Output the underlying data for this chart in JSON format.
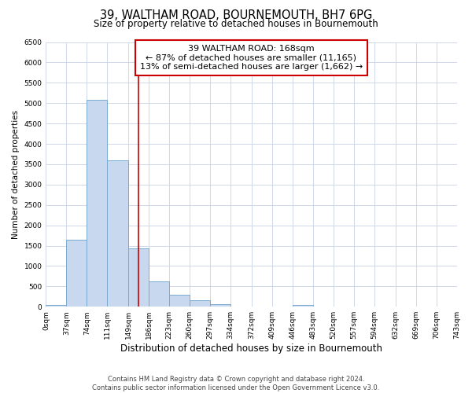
{
  "title": "39, WALTHAM ROAD, BOURNEMOUTH, BH7 6PG",
  "subtitle": "Size of property relative to detached houses in Bournemouth",
  "xlabel": "Distribution of detached houses by size in Bournemouth",
  "ylabel": "Number of detached properties",
  "bin_edges": [
    0,
    37,
    74,
    111,
    149,
    186,
    223,
    260,
    297,
    334,
    372,
    409,
    446,
    483,
    520,
    557,
    594,
    632,
    669,
    706,
    743
  ],
  "bin_labels": [
    "0sqm",
    "37sqm",
    "74sqm",
    "111sqm",
    "149sqm",
    "186sqm",
    "223sqm",
    "260sqm",
    "297sqm",
    "334sqm",
    "372sqm",
    "409sqm",
    "446sqm",
    "483sqm",
    "520sqm",
    "557sqm",
    "594sqm",
    "632sqm",
    "669sqm",
    "706sqm",
    "743sqm"
  ],
  "bar_heights": [
    50,
    1650,
    5080,
    3600,
    1430,
    620,
    300,
    150,
    60,
    0,
    0,
    0,
    50,
    0,
    0,
    0,
    0,
    0,
    0,
    0
  ],
  "bar_color": "#c8d8ee",
  "bar_edgecolor": "#7aaad0",
  "vline_x": 168,
  "vline_color": "#cc0000",
  "annotation_line1": "39 WALTHAM ROAD: 168sqm",
  "annotation_line2": "← 87% of detached houses are smaller (11,165)",
  "annotation_line3": "13% of semi-detached houses are larger (1,662) →",
  "annotation_box_edgecolor": "#cc0000",
  "annotation_box_facecolor": "#ffffff",
  "ylim": [
    0,
    6500
  ],
  "yticks": [
    0,
    500,
    1000,
    1500,
    2000,
    2500,
    3000,
    3500,
    4000,
    4500,
    5000,
    5500,
    6000,
    6500
  ],
  "footer_line1": "Contains HM Land Registry data © Crown copyright and database right 2024.",
  "footer_line2": "Contains public sector information licensed under the Open Government Licence v3.0.",
  "bg_color": "#ffffff",
  "grid_color": "#d0d8e8",
  "title_fontsize": 10.5,
  "subtitle_fontsize": 8.5,
  "xlabel_fontsize": 8.5,
  "ylabel_fontsize": 7.5,
  "tick_fontsize": 6.5,
  "annotation_fontsize": 8,
  "footer_fontsize": 6
}
